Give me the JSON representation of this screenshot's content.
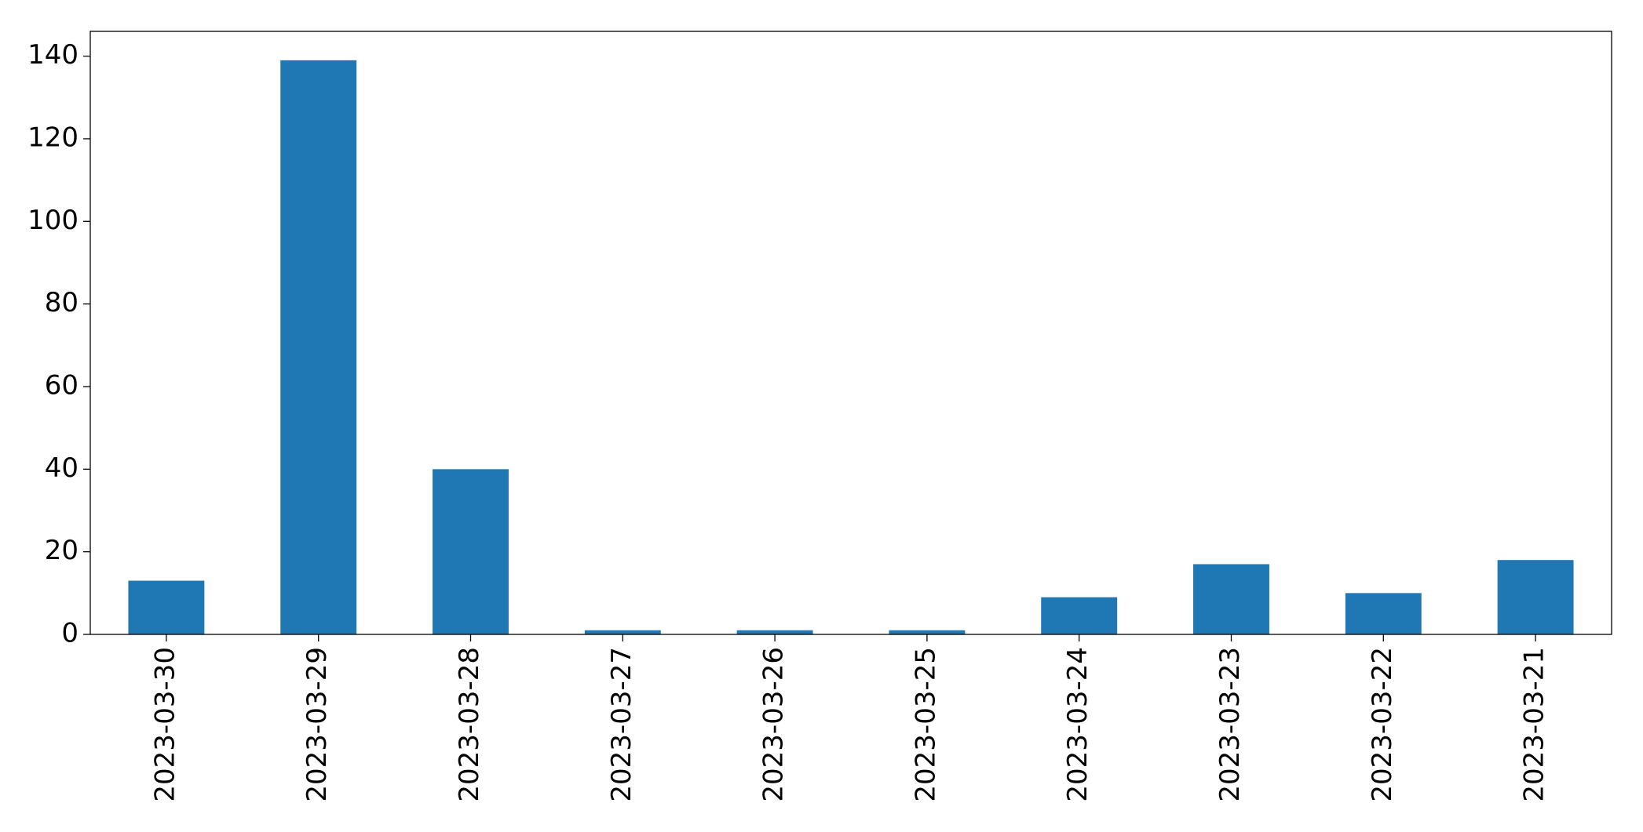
{
  "chart_data": {
    "type": "bar",
    "categories": [
      "2023-03-30",
      "2023-03-29",
      "2023-03-28",
      "2023-03-27",
      "2023-03-26",
      "2023-03-25",
      "2023-03-24",
      "2023-03-23",
      "2023-03-22",
      "2023-03-21"
    ],
    "values": [
      13,
      139,
      40,
      1,
      1,
      1,
      9,
      17,
      10,
      18
    ],
    "color": "#1f77b4",
    "ylim": [
      0,
      146
    ],
    "yticks": [
      0,
      20,
      40,
      60,
      80,
      100,
      120,
      140
    ],
    "grid": false
  }
}
